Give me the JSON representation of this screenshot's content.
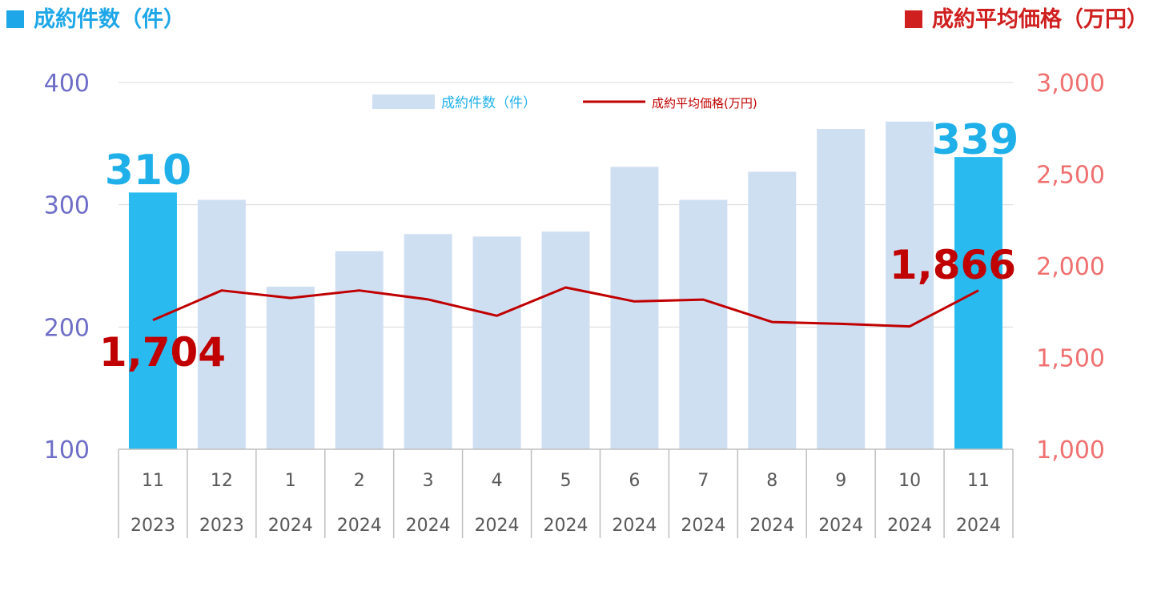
{
  "header": {
    "left_title": "成約件数（件）",
    "right_title": "成約平均価格（万円）"
  },
  "colors": {
    "bar": "#cfdff2",
    "bar_highlight": "#29bbef",
    "line": "#c00000",
    "left_axis_text": "#6e6ec8",
    "right_axis_text": "#f07070",
    "highlight_label_count": "#1fb0ea",
    "highlight_label_price": "#c00000",
    "grid": "#d9d9d9",
    "title_left": "#1ea7e8",
    "title_right": "#d01f1f"
  },
  "chart_data": {
    "type": "bar",
    "categories": [
      {
        "month": "11",
        "year": "2023"
      },
      {
        "month": "12",
        "year": "2023"
      },
      {
        "month": "1",
        "year": "2024"
      },
      {
        "month": "2",
        "year": "2024"
      },
      {
        "month": "3",
        "year": "2024"
      },
      {
        "month": "4",
        "year": "2024"
      },
      {
        "month": "5",
        "year": "2024"
      },
      {
        "month": "6",
        "year": "2024"
      },
      {
        "month": "7",
        "year": "2024"
      },
      {
        "month": "8",
        "year": "2024"
      },
      {
        "month": "9",
        "year": "2024"
      },
      {
        "month": "10",
        "year": "2024"
      },
      {
        "month": "11",
        "year": "2024"
      }
    ],
    "series": [
      {
        "name": "成約件数（件）",
        "type": "bar",
        "axis": "left",
        "values": [
          310,
          304,
          233,
          262,
          276,
          274,
          278,
          331,
          304,
          327,
          362,
          368,
          339
        ],
        "highlight_indices": [
          0,
          12
        ]
      },
      {
        "name": "成約平均価格(万円)",
        "type": "line",
        "axis": "right",
        "values": [
          1704,
          1866,
          1825,
          1866,
          1817,
          1728,
          1882,
          1806,
          1816,
          1694,
          1684,
          1670,
          1866
        ]
      }
    ],
    "left_axis": {
      "min": 100,
      "max": 400,
      "ticks": [
        "100",
        "200",
        "300",
        "400"
      ]
    },
    "right_axis": {
      "min": 1000,
      "max": 3000,
      "ticks": [
        "1,000",
        "1,500",
        "2,000",
        "2,500",
        "3,000"
      ]
    },
    "annotations": {
      "count_first": "310",
      "count_last": "339",
      "price_first": "1,704",
      "price_last": "1,866"
    },
    "legend": {
      "placement": "top-center",
      "bar_label": "成約件数（件）",
      "line_label": "成約平均価格(万円)"
    },
    "grid": true
  }
}
